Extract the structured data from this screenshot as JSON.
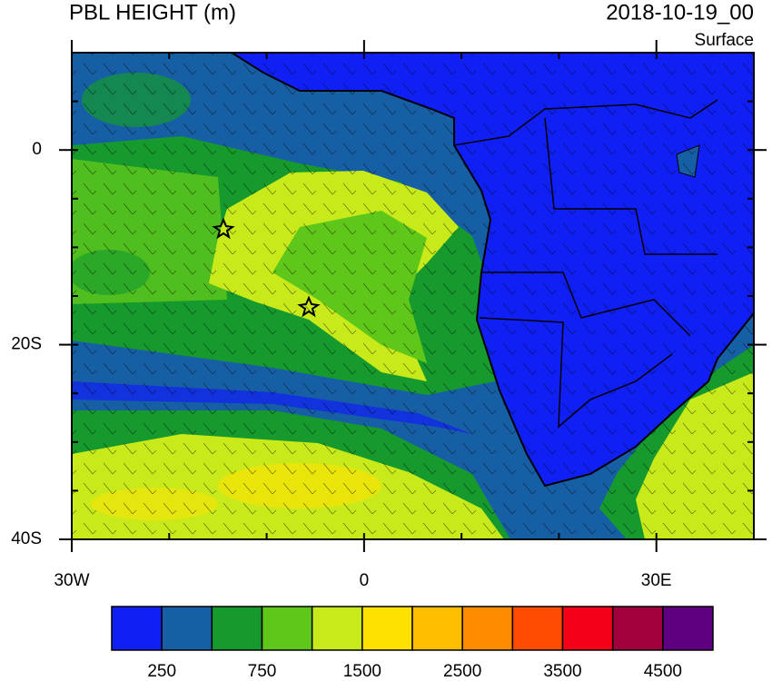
{
  "header": {
    "title": "PBL HEIGHT (m)",
    "time": "2018-10-19_00",
    "level": "Surface"
  },
  "map": {
    "lon_range": [
      -30,
      40
    ],
    "lat_range": [
      -40,
      10
    ],
    "lon_ticks": [
      {
        "value": -30,
        "label": "30W"
      },
      0,
      {
        "value": 30,
        "label": "30E"
      }
    ],
    "lat_ticks": [
      0,
      {
        "value": -20,
        "label": "20S"
      },
      {
        "value": -40,
        "label": "40S"
      }
    ]
  },
  "colorbar": {
    "colors": [
      "#1020f5",
      "#175fa5",
      "#169a2e",
      "#5ec71a",
      "#c9ea1a",
      "#ffe100",
      "#ffbe00",
      "#ff8c00",
      "#ff4b00",
      "#f50019",
      "#a0003c",
      "#5f0080"
    ],
    "labels": [
      250,
      750,
      1500,
      2500,
      3500,
      4500
    ]
  }
}
